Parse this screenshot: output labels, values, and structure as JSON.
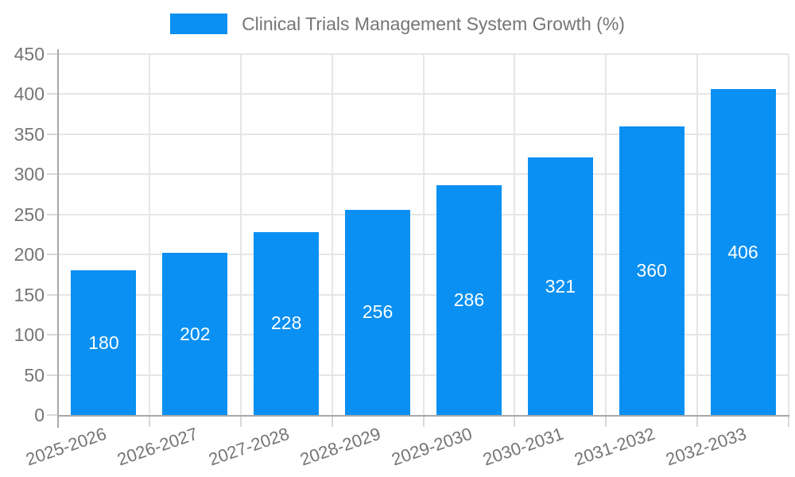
{
  "chart_data": {
    "type": "bar",
    "legend_label": "Clinical Trials Management System Growth (%)",
    "legend_position": "top-center",
    "categories": [
      "2025-2026",
      "2026-2027",
      "2027-2028",
      "2028-2029",
      "2029-2030",
      "2030-2031",
      "2031-2032",
      "2032-2033"
    ],
    "values": [
      180,
      202,
      228,
      256,
      286,
      321,
      360,
      406
    ],
    "yticks": [
      0,
      50,
      100,
      150,
      200,
      250,
      300,
      350,
      400,
      450
    ],
    "ylim": [
      0,
      450
    ],
    "ytick_step": 50,
    "grid": true,
    "bar_value_labels_visible": true,
    "colors": {
      "bar": "#0a90f2",
      "bar_label_text": "#ffffff",
      "axis_line": "#a8a8a8",
      "gridline": "#e6e6e6",
      "tick_mark": "#d9d9d9",
      "tick_text": "#757575",
      "legend_text": "#757575",
      "background": "#ffffff"
    }
  }
}
